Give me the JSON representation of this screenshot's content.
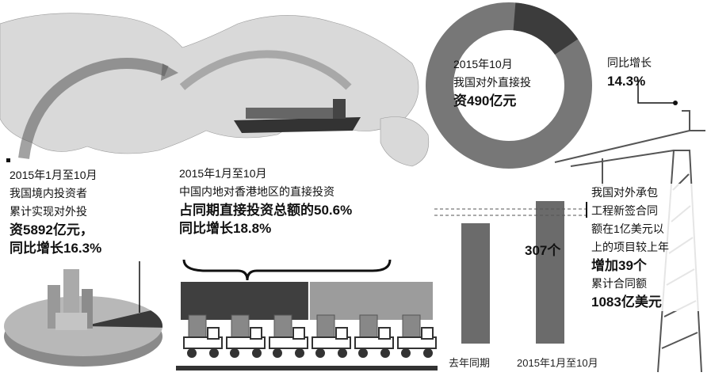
{
  "left_block": {
    "line1": "2015年1月至10月",
    "line2": "我国境内投资者",
    "line3": "累计实现对外投",
    "line4": "资5892亿元，",
    "line5": "同比增长16.3%"
  },
  "middle_block": {
    "line1": "2015年1月至10月",
    "line2": "中国内地对香港地区的直接投资",
    "line3": "占同期直接投资总额的50.6%",
    "line4": "同比增长18.8%",
    "hk_share_percent": 50.6
  },
  "donut": {
    "line1": "2015年10月",
    "line2": "我国对外直接投",
    "line3": "资490亿元",
    "growth_label": "同比增长",
    "growth_value": "14.3%",
    "growth_fraction": 0.143
  },
  "bars": {
    "value_label": "307个",
    "categories": [
      "去年同期",
      "2015年1月至10月"
    ]
  },
  "crane_block": {
    "line1": "我国对外承包",
    "line2": "工程新签合同",
    "line3": "额在1亿美元以",
    "line4": "上的项目较上年",
    "line5": "增加39个",
    "line6": "累计合同额",
    "line7": "1083亿美元"
  },
  "colors": {
    "dark": "#3c3c3c",
    "mid": "#777777",
    "light": "#b5b5b5",
    "map": "#d6d6d6"
  }
}
